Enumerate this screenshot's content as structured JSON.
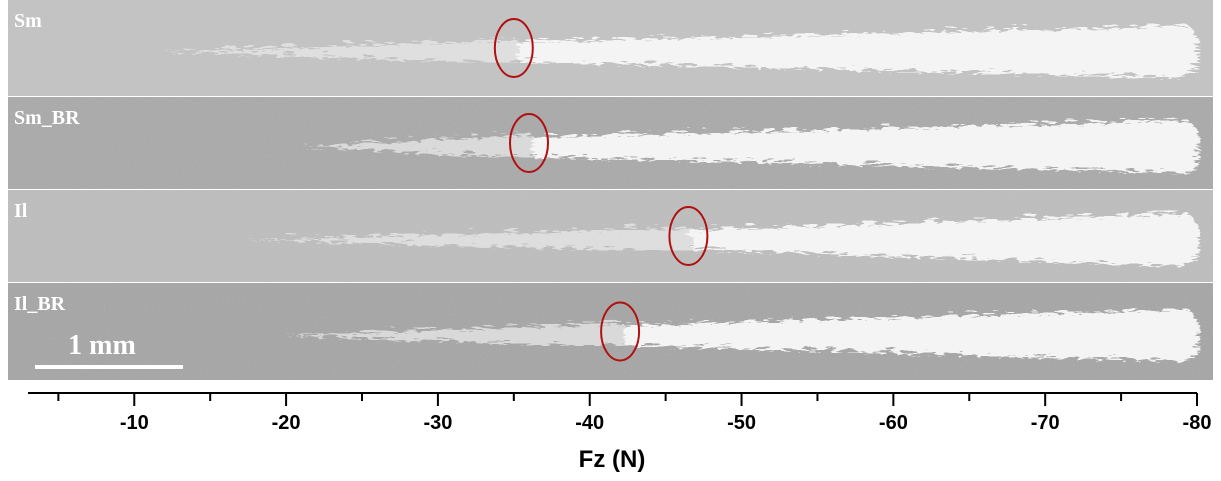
{
  "panels": [
    {
      "label": "Sm",
      "critical_fz": -35
    },
    {
      "label": "Sm_BR",
      "critical_fz": -36
    },
    {
      "label": "Il",
      "critical_fz": -46.5
    },
    {
      "label": "Il_BR",
      "critical_fz": -42
    }
  ],
  "scale_bar": "1 mm",
  "axis": {
    "label": "Fz (N)",
    "xlim": [
      -3,
      -80
    ],
    "xticks": [
      -10,
      -20,
      -30,
      -40,
      -50,
      -60,
      -70,
      -80
    ],
    "minor_ticks": [
      -5,
      -15,
      -25,
      -35,
      -45,
      -55,
      -65,
      -75
    ]
  }
}
